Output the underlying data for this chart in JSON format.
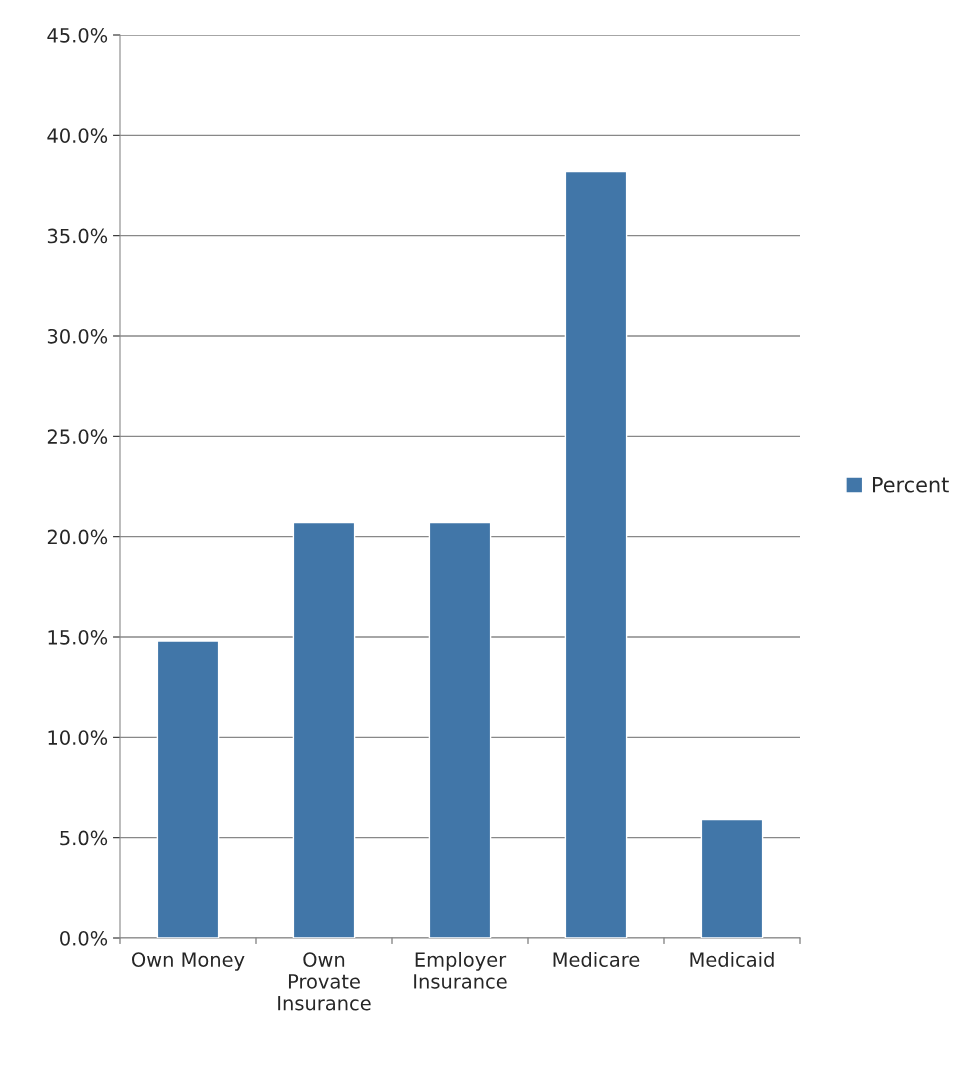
{
  "chart_data": {
    "type": "bar",
    "categories": [
      "Own Money",
      "Own Provate Insurance",
      "Employer Insurance",
      "Medicare",
      "Medicaid"
    ],
    "series": [
      {
        "name": "Percent",
        "color": "#4176a8",
        "values": [
          14.8,
          20.7,
          20.7,
          38.2,
          5.9
        ]
      }
    ],
    "ylim": [
      0,
      45
    ],
    "yticks": [
      {
        "value": 0,
        "label": "0.0%"
      },
      {
        "value": 5,
        "label": "5.0%"
      },
      {
        "value": 10,
        "label": "10.0%"
      },
      {
        "value": 15,
        "label": "15.0%"
      },
      {
        "value": 20,
        "label": "20.0%"
      },
      {
        "value": 25,
        "label": "25.0%"
      },
      {
        "value": 30,
        "label": "30.0%"
      },
      {
        "value": 35,
        "label": "35.0%"
      },
      {
        "value": 40,
        "label": "40.0%"
      },
      {
        "value": 45,
        "label": "45.0%"
      }
    ],
    "grid": "y",
    "legend": "right"
  }
}
